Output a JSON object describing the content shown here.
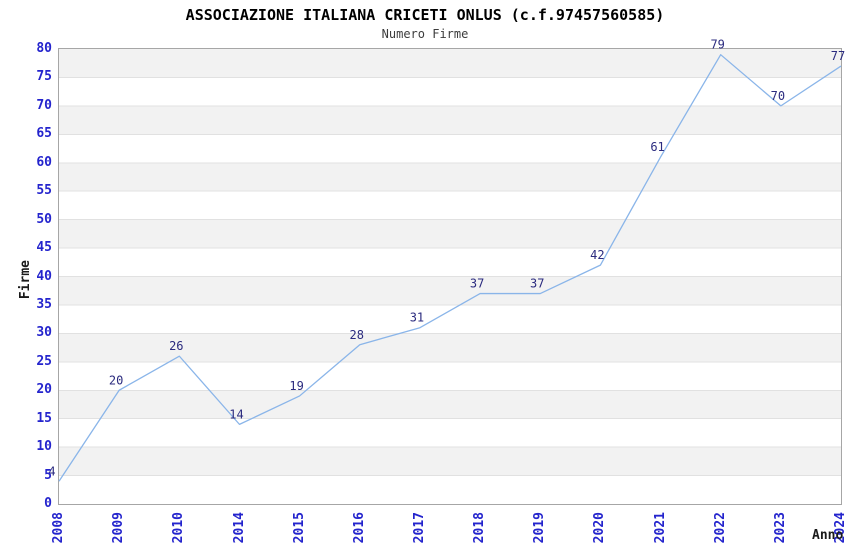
{
  "header": {
    "title": "ASSOCIAZIONE ITALIANA CRICETI ONLUS (c.f.97457560585)",
    "subtitle": "Numero Firme"
  },
  "chart_data": {
    "type": "line",
    "title": "ASSOCIAZIONE ITALIANA CRICETI ONLUS (c.f.97457560585)",
    "subtitle": "Numero Firme",
    "categories": [
      "2008",
      "2009",
      "2010",
      "2014",
      "2015",
      "2016",
      "2017",
      "2018",
      "2019",
      "2020",
      "2021",
      "2022",
      "2023",
      "2024"
    ],
    "values": [
      4,
      20,
      26,
      14,
      19,
      28,
      31,
      37,
      37,
      42,
      61,
      79,
      70,
      77
    ],
    "xlabel": "Anno",
    "ylabel": "Firme",
    "ylim": [
      0,
      80
    ],
    "y_ticks": [
      0,
      5,
      10,
      15,
      20,
      25,
      30,
      35,
      40,
      45,
      50,
      55,
      60,
      65,
      70,
      75,
      80
    ],
    "grid": "horizontal-bands",
    "legend": "none",
    "colors": {
      "line": "#8ab5e9",
      "data_label": "#2b2b7f",
      "tick_label": "#2424cd",
      "band_gray": "#f2f2f2",
      "band_white": "#ffffff",
      "gridline": "#e1e1e1",
      "plot_border": "#a6a6a6",
      "title": "#000000",
      "subtitle": "#3c3c3c",
      "axis_title": "#1a1a1a"
    }
  }
}
